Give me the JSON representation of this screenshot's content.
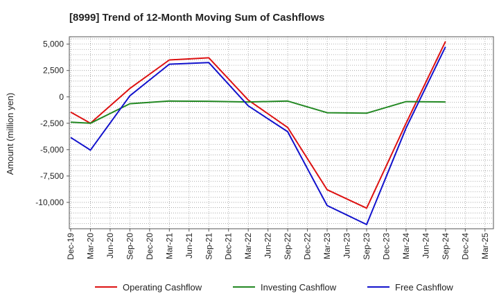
{
  "chart_data": {
    "type": "line",
    "title": "[8999]  Trend of 12-Month Moving Sum of Cashflows",
    "xlabel": "",
    "ylabel": "Amount (million yen)",
    "ylim": [
      -12500,
      5700
    ],
    "yticks": [
      5000,
      2500,
      0,
      -2500,
      -5000,
      -7500,
      -10000
    ],
    "ytick_labels": [
      "5,000",
      "2,500",
      "0",
      "-2,500",
      "-5,000",
      "-7,500",
      "-10,000"
    ],
    "categories": [
      "Dec-19",
      "Mar-20",
      "Jun-20",
      "Sep-20",
      "Dec-20",
      "Mar-21",
      "Jun-21",
      "Sep-21",
      "Dec-21",
      "Mar-22",
      "Jun-22",
      "Sep-22",
      "Dec-22",
      "Mar-23",
      "Jun-23",
      "Sep-23",
      "Dec-23",
      "Mar-24",
      "Jun-24",
      "Sep-24",
      "Dec-24",
      "Mar-25"
    ],
    "grid": true,
    "legend_position": "bottom",
    "series": [
      {
        "name": "Operating Cashflow",
        "color": "#dd1111",
        "values": [
          -1450,
          -2500,
          null,
          800,
          null,
          3500,
          null,
          3700,
          null,
          -300,
          null,
          -2900,
          null,
          -8800,
          null,
          -10550,
          null,
          -2500,
          null,
          5250,
          null,
          null
        ]
      },
      {
        "name": "Investing Cashflow",
        "color": "#228822",
        "values": [
          -2400,
          -2500,
          null,
          -650,
          null,
          -400,
          null,
          -420,
          null,
          -480,
          null,
          -400,
          null,
          -1500,
          null,
          -1550,
          null,
          -450,
          null,
          -480,
          null,
          null
        ]
      },
      {
        "name": "Free Cashflow",
        "color": "#1111cc",
        "values": [
          -3850,
          -5050,
          null,
          100,
          null,
          3100,
          null,
          3250,
          null,
          -850,
          null,
          -3300,
          null,
          -10300,
          null,
          -12100,
          null,
          -2950,
          null,
          4750,
          null,
          null
        ]
      }
    ]
  }
}
